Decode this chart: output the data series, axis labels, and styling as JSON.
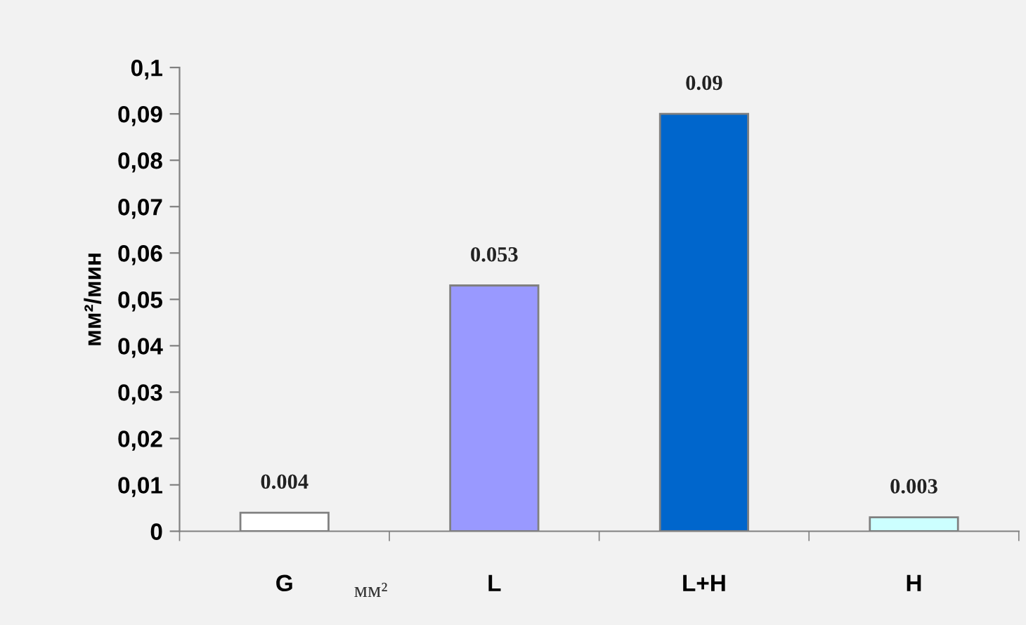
{
  "chart_data": {
    "type": "bar",
    "ylabel": "мм²/мин",
    "categories": [
      "G",
      "L",
      "L+H",
      "H"
    ],
    "values": [
      0.004,
      0.053,
      0.09,
      0.003
    ],
    "colors": [
      "#ffffff",
      "#9999ff",
      "#0066cc",
      "#ccffff"
    ],
    "ylim": [
      0,
      0.1
    ],
    "yticks": [
      0,
      {
        "value": 0.01,
        "label": "0,01"
      },
      {
        "value": 0.02,
        "label": "0,02"
      },
      {
        "value": 0.03,
        "label": "0,03"
      },
      {
        "value": 0.04,
        "label": "0,04"
      },
      {
        "value": 0.05,
        "label": "0,05"
      },
      {
        "value": 0.06,
        "label": "0,06"
      },
      {
        "value": 0.07,
        "label": "0,07"
      },
      {
        "value": 0.08,
        "label": "0,08"
      },
      {
        "value": 0.09,
        "label": "0,09"
      },
      {
        "value": 0.1,
        "label": "0,1"
      }
    ],
    "data_labels": true,
    "grid": false,
    "legend": false,
    "annotations": [
      "мм²"
    ]
  }
}
